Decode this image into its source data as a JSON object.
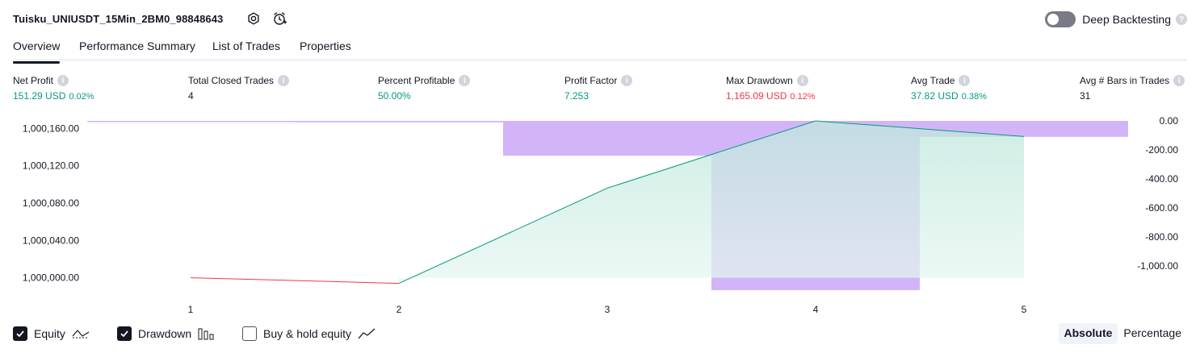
{
  "header": {
    "title": "Tuisku_UNIUSDT_15Min_2BM0_98848643",
    "deep_backtesting_label": "Deep Backtesting",
    "help_glyph": "?"
  },
  "tabs": [
    {
      "label": "Overview",
      "active": true
    },
    {
      "label": "Performance Summary",
      "active": false
    },
    {
      "label": "List of Trades",
      "active": false
    },
    {
      "label": "Properties",
      "active": false
    }
  ],
  "metrics": [
    {
      "label": "Net Profit",
      "value": "151.29 USD",
      "pct": "0.02%",
      "color": "#089981"
    },
    {
      "label": "Total Closed Trades",
      "value": "4",
      "pct": "",
      "color": "#131722"
    },
    {
      "label": "Percent Profitable",
      "value": "50.00%",
      "pct": "",
      "color": "#089981"
    },
    {
      "label": "Profit Factor",
      "value": "7.253",
      "pct": "",
      "color": "#089981"
    },
    {
      "label": "Max Drawdown",
      "value": "1,165.09 USD",
      "pct": "0.12%",
      "color": "#f23645"
    },
    {
      "label": "Avg Trade",
      "value": "37.82 USD",
      "pct": "0.38%",
      "color": "#089981"
    },
    {
      "label": "Avg # Bars in Trades",
      "value": "31",
      "pct": "",
      "color": "#131722"
    }
  ],
  "legend": {
    "equity_label": "Equity",
    "drawdown_label": "Drawdown",
    "buy_hold_label": "Buy & hold equity",
    "equity_checked": true,
    "drawdown_checked": true,
    "buy_hold_checked": false
  },
  "mode": {
    "absolute_label": "Absolute",
    "percentage_label": "Percentage",
    "active": "absolute"
  },
  "chart_data": {
    "type": "area",
    "x_ticks": [
      "1",
      "2",
      "3",
      "4",
      "5"
    ],
    "equity": {
      "x": [
        1,
        2,
        3,
        4,
        5
      ],
      "y": [
        1000000.0,
        999994.0,
        1000096.0,
        1000168.0,
        1000151.29
      ],
      "color_up": "#089981",
      "color_down": "#f23645",
      "fill": "#cfeee6"
    },
    "drawdown": {
      "color": "#c9a8f7",
      "bars": [
        {
          "x_start": 0.5,
          "x_end": 1.5,
          "value": -5
        },
        {
          "x_start": 1.5,
          "x_end": 2.5,
          "value": -10
        },
        {
          "x_start": 2.5,
          "x_end": 3.5,
          "value": -240
        },
        {
          "x_start": 3.5,
          "x_end": 4.5,
          "value": -1165.09
        },
        {
          "x_start": 4.5,
          "x_end": 5.5,
          "value": -110
        }
      ]
    },
    "y_left": {
      "ticks": [
        1000000,
        1000040,
        1000080,
        1000120,
        1000160
      ],
      "tick_labels": [
        "1,000,000.00",
        "1,000,040.00",
        "1,000,080.00",
        "1,000,120.00",
        "1,000,160.00"
      ],
      "range": [
        999985,
        1000168
      ]
    },
    "y_right": {
      "ticks": [
        0,
        -200,
        -400,
        -600,
        -800,
        -1000
      ],
      "tick_labels": [
        "0.00",
        "-200.00",
        "-400.00",
        "-600.00",
        "-800.00",
        "-1,000.00"
      ],
      "range": [
        -1165.09,
        0
      ]
    },
    "grid": false
  }
}
